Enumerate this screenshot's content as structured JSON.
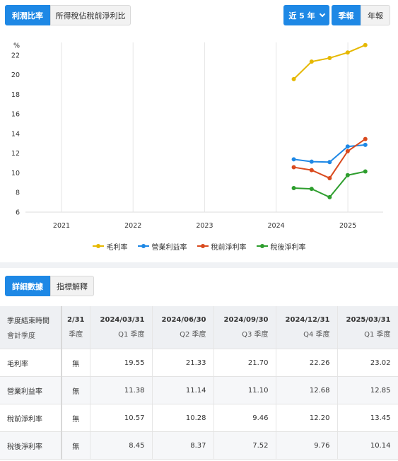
{
  "toolbar": {
    "ratio_tabs": [
      "利潤比率",
      "所得稅佔稅前淨利比"
    ],
    "period": "近 5 年",
    "freq_tabs": [
      "季報",
      "年報"
    ]
  },
  "colors": {
    "accent": "#1e88e5",
    "gross": "#e6b800",
    "operating": "#1e88e5",
    "pretax": "#d94a1e",
    "aftertax": "#2e9e2e"
  },
  "chart_data": {
    "type": "line",
    "ylabel": "%",
    "ylim": [
      6,
      23
    ],
    "yticks": [
      6,
      8,
      10,
      12,
      14,
      16,
      18,
      20,
      22
    ],
    "xticks": [
      "2021",
      "2022",
      "2023",
      "2024",
      "2025"
    ],
    "x": [
      "2024-03-31",
      "2024-06-30",
      "2024-09-30",
      "2024-12-31",
      "2025-03-31"
    ],
    "series": [
      {
        "name": "毛利率",
        "color": "#e6b800",
        "values": [
          19.55,
          21.33,
          21.7,
          22.26,
          23.02
        ]
      },
      {
        "name": "營業利益率",
        "color": "#1e88e5",
        "values": [
          11.38,
          11.14,
          11.1,
          12.68,
          12.85
        ]
      },
      {
        "name": "稅前淨利率",
        "color": "#d94a1e",
        "values": [
          10.57,
          10.28,
          9.46,
          12.2,
          13.45
        ]
      },
      {
        "name": "稅後淨利率",
        "color": "#2e9e2e",
        "values": [
          8.45,
          8.37,
          7.52,
          9.76,
          10.14
        ]
      }
    ]
  },
  "detail_tabs": [
    "詳細數據",
    "指標解釋"
  ],
  "table": {
    "header_label": [
      "季度結束時間",
      "會計季度"
    ],
    "cut_column": {
      "date": "2/31",
      "quarter": "季度"
    },
    "columns": [
      {
        "date": "2024/03/31",
        "quarter": "Q1 季度"
      },
      {
        "date": "2024/06/30",
        "quarter": "Q2 季度"
      },
      {
        "date": "2024/09/30",
        "quarter": "Q3 季度"
      },
      {
        "date": "2024/12/31",
        "quarter": "Q4 季度"
      },
      {
        "date": "2025/03/31",
        "quarter": "Q1 季度"
      }
    ],
    "rows": [
      {
        "label": "毛利率",
        "cut": "無",
        "values": [
          "19.55",
          "21.33",
          "21.70",
          "22.26",
          "23.02"
        ]
      },
      {
        "label": "營業利益率",
        "cut": "無",
        "values": [
          "11.38",
          "11.14",
          "11.10",
          "12.68",
          "12.85"
        ]
      },
      {
        "label": "稅前淨利率",
        "cut": "無",
        "values": [
          "10.57",
          "10.28",
          "9.46",
          "12.20",
          "13.45"
        ]
      },
      {
        "label": "稅後淨利率",
        "cut": "無",
        "values": [
          "8.45",
          "8.37",
          "7.52",
          "9.76",
          "10.14"
        ]
      }
    ]
  }
}
